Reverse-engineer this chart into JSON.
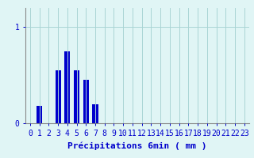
{
  "values": [
    0,
    0.18,
    0,
    0.55,
    0.75,
    0.55,
    0.45,
    0.2,
    0,
    0,
    0,
    0,
    0,
    0,
    0,
    0,
    0,
    0,
    0,
    0,
    0,
    0,
    0,
    0
  ],
  "bar_color": "#0000cc",
  "background_color": "#e0f5f5",
  "grid_color": "#aad4d4",
  "axis_color": "#888888",
  "text_color": "#0000cc",
  "xlabel": "Précipitations 6min ( mm )",
  "ytick_labels": [
    "0",
    "1"
  ],
  "ytick_vals": [
    0,
    1
  ],
  "ylim": [
    0,
    1.2
  ],
  "xlim": [
    -0.5,
    23.5
  ],
  "label_fontsize": 8,
  "tick_fontsize": 7
}
